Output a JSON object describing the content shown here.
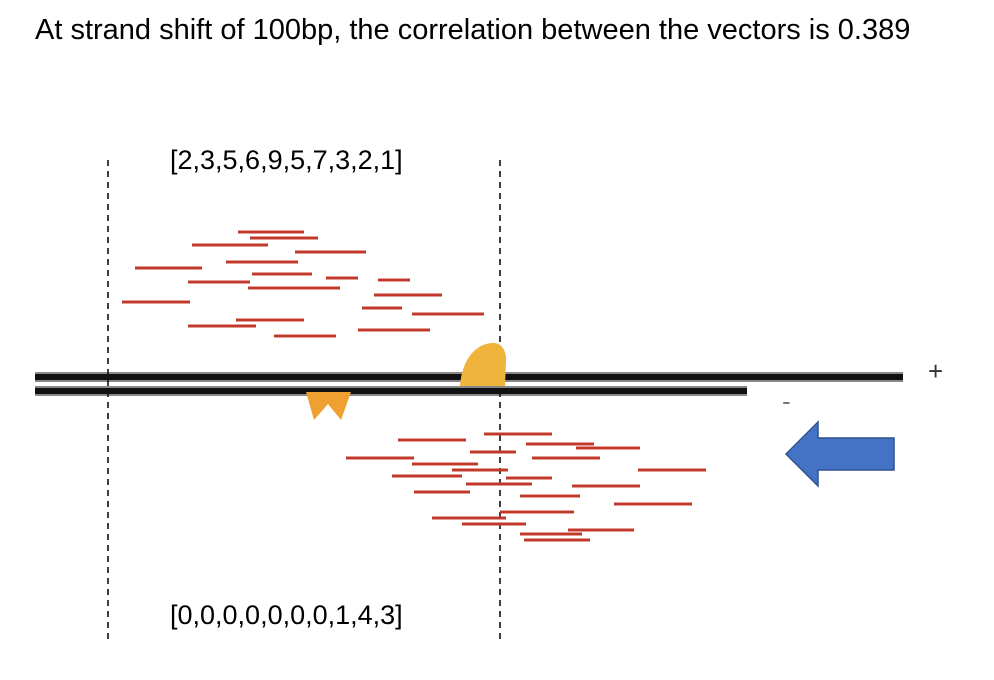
{
  "headline": "At strand shift of 100bp, the correlation between the vectors is 0.389",
  "vectors": {
    "top": "[2,3,5,6,9,5,7,3,2,1]",
    "bottom": "[0,0,0,0,0,0,0,1,4,3]"
  },
  "strands": {
    "plus": "+",
    "minus": "-"
  },
  "colors": {
    "read": "#c0392b",
    "dna": "#111111",
    "protein_top": "#f0b43c",
    "protein_bottom": "#f0a030",
    "arrow": "#4472c4",
    "arrow_stroke": "#2f528f"
  },
  "icons": {
    "arrow": "left-arrow-icon"
  }
}
